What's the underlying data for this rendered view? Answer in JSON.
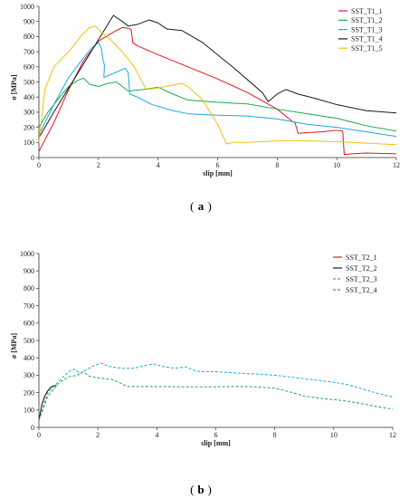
{
  "panels": [
    {
      "id": "a",
      "caption_open": "(",
      "caption_letter": "a",
      "caption_close": ")",
      "chart_data": {
        "type": "line",
        "xlabel": "slip [mm]",
        "ylabel": "σ [MPa]",
        "xlim": [
          0,
          12
        ],
        "ylim": [
          0,
          1000
        ],
        "xticks": [
          0,
          2,
          4,
          6,
          8,
          10,
          12
        ],
        "yticks": [
          0,
          100,
          200,
          300,
          400,
          500,
          600,
          700,
          800,
          900,
          1000
        ],
        "grid": false,
        "legend_position": "top-right",
        "series": [
          {
            "name": "SST_T1_1",
            "color": "#e8141c",
            "dash": "",
            "x": [
              0,
              0.5,
              1,
              1.5,
              2,
              2.5,
              2.8,
              3.0,
              3.1,
              3.15,
              3.3,
              4,
              5,
              6,
              7,
              8,
              8.5,
              8.6,
              8.7,
              9,
              9.5,
              10,
              10.2,
              10.25,
              10.5,
              11,
              12
            ],
            "y": [
              40,
              230,
              450,
              640,
              770,
              830,
              860,
              855,
              845,
              760,
              740,
              680,
              600,
              520,
              430,
              320,
              240,
              230,
              160,
              165,
              170,
              180,
              175,
              20,
              25,
              30,
              25
            ]
          },
          {
            "name": "SST_T1_2",
            "color": "#1aab45",
            "dash": "",
            "x": [
              0,
              0.3,
              0.7,
              1.0,
              1.3,
              1.5,
              1.7,
              2.0,
              2.3,
              2.6,
              3.0,
              3.5,
              4.0,
              4.5,
              5.0,
              6.0,
              7.0,
              8.0,
              9.0,
              10.0,
              11.0,
              12.0
            ],
            "y": [
              200,
              300,
              400,
              470,
              510,
              525,
              485,
              470,
              490,
              500,
              440,
              450,
              465,
              420,
              380,
              365,
              355,
              320,
              290,
              260,
              210,
              175
            ]
          },
          {
            "name": "SST_T1_3",
            "color": "#1ca7df",
            "dash": "",
            "x": [
              0,
              0.5,
              1.0,
              1.5,
              1.8,
              2.0,
              2.1,
              2.15,
              2.2,
              2.18,
              2.3,
              2.6,
              2.9,
              3.0,
              3.05,
              3.3,
              3.8,
              4.5,
              5.0,
              6.0,
              7.0,
              8.0,
              9.0,
              10.0,
              11.0,
              12.0
            ],
            "y": [
              150,
              350,
              530,
              660,
              730,
              760,
              720,
              650,
              610,
              530,
              540,
              565,
              590,
              560,
              420,
              400,
              350,
              310,
              290,
              280,
              275,
              255,
              220,
              200,
              170,
              140
            ]
          },
          {
            "name": "SST_T1_4",
            "color": "#1a1a1a",
            "dash": "",
            "x": [
              0,
              0.5,
              1.0,
              1.5,
              2.0,
              2.5,
              2.8,
              3.0,
              3.3,
              3.7,
              4.0,
              4.3,
              4.8,
              5.5,
              6.5,
              7.5,
              7.7,
              8.0,
              8.3,
              8.7,
              9.3,
              10.0,
              11.0,
              12.0
            ],
            "y": [
              130,
              300,
              460,
              620,
              780,
              940,
              900,
              870,
              880,
              910,
              890,
              850,
              840,
              760,
              600,
              430,
              370,
              420,
              450,
              420,
              390,
              350,
              310,
              295
            ]
          },
          {
            "name": "SST_T1_5",
            "color": "#f2c10a",
            "dash": "",
            "x": [
              0,
              0.2,
              0.5,
              1.0,
              1.4,
              1.7,
              1.9,
              2.1,
              2.4,
              2.8,
              3.2,
              3.6,
              4.0,
              4.5,
              4.8,
              5.0,
              5.5,
              6.0,
              6.3,
              6.5,
              7.0,
              8.0,
              9.0,
              10.0,
              11.0,
              12.0
            ],
            "y": [
              100,
              450,
              600,
              700,
              800,
              860,
              870,
              830,
              780,
              700,
              600,
              450,
              460,
              480,
              490,
              470,
              380,
              220,
              90,
              100,
              100,
              110,
              110,
              105,
              95,
              85
            ]
          }
        ]
      }
    },
    {
      "id": "b",
      "caption_open": "(",
      "caption_letter": "b",
      "caption_close": ")",
      "chart_data": {
        "type": "line",
        "xlabel": "slip [mm]",
        "ylabel": "σ [MPa]",
        "xlim": [
          0,
          12
        ],
        "ylim": [
          0,
          1000
        ],
        "xticks": [
          0,
          2,
          4,
          6,
          8,
          10,
          12
        ],
        "yticks": [
          0,
          100,
          200,
          300,
          400,
          500,
          600,
          700,
          800,
          900,
          1000
        ],
        "grid": false,
        "legend_position": "top-right",
        "series": [
          {
            "name": "SST_T2_1",
            "color": "#e8141c",
            "dash": "",
            "x": [
              0,
              0.1,
              0.2,
              0.3,
              0.4,
              0.5
            ],
            "y": [
              40,
              130,
              180,
              210,
              230,
              240
            ]
          },
          {
            "name": "SST_T2_2",
            "color": "#1a1a1a",
            "dash": "",
            "x": [
              0,
              0.1,
              0.2,
              0.3,
              0.4,
              0.5,
              0.6
            ],
            "y": [
              40,
              130,
              180,
              210,
              230,
              240,
              240
            ]
          },
          {
            "name": "SST_T2_3",
            "color": "#1ca7df",
            "dash": "3,2",
            "x": [
              0,
              0.3,
              0.7,
              1.0,
              1.2,
              1.4,
              1.6,
              1.8,
              2.1,
              2.4,
              2.8,
              3.2,
              3.6,
              3.9,
              4.2,
              4.6,
              5.0,
              5.3,
              5.6,
              6.0,
              6.5,
              7.0,
              7.5,
              8.0,
              8.5,
              9.0,
              9.5,
              10.0,
              10.5,
              11.0,
              11.5,
              12.0
            ],
            "y": [
              40,
              200,
              270,
              320,
              335,
              310,
              330,
              350,
              370,
              350,
              340,
              340,
              355,
              365,
              350,
              340,
              348,
              325,
              320,
              320,
              315,
              310,
              305,
              300,
              290,
              280,
              270,
              260,
              245,
              220,
              195,
              175
            ]
          },
          {
            "name": "SST_T2_4",
            "color": "#1aab45",
            "dash": "3,2",
            "x": [
              0,
              0.3,
              0.7,
              1.0,
              1.3,
              1.5,
              1.7,
              2.0,
              2.5,
              3.0,
              3.5,
              4.0,
              5.0,
              6.0,
              6.5,
              7.0,
              7.5,
              8.0,
              8.5,
              9.0,
              9.5,
              10.0,
              10.5,
              11.0,
              11.5,
              12.0
            ],
            "y": [
              40,
              180,
              260,
              290,
              300,
              320,
              295,
              285,
              275,
              235,
              235,
              235,
              233,
              233,
              235,
              235,
              232,
              225,
              205,
              180,
              168,
              160,
              150,
              135,
              118,
              105
            ]
          }
        ]
      }
    }
  ]
}
